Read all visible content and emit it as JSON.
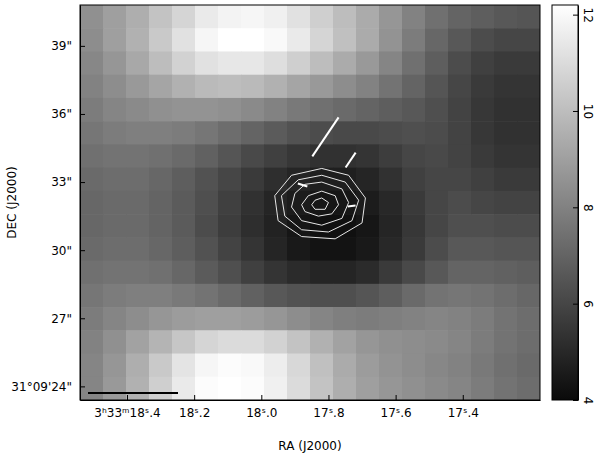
{
  "chart_data": {
    "type": "heatmap",
    "xlabel": "RA (J2000)",
    "ylabel": "DEC (J2000)",
    "xlim": [
      18.54,
      17.17
    ],
    "ylim": [
      40.8,
      23.4
    ],
    "xticks": [
      {
        "value": 18.4,
        "label": "3ʰ33ᵐ18ˢ.4"
      },
      {
        "value": 18.2,
        "label": "18ˢ.2"
      },
      {
        "value": 18.0,
        "label": "18ˢ.0"
      },
      {
        "value": 17.8,
        "label": "17ˢ.8"
      },
      {
        "value": 17.6,
        "label": "17ˢ.6"
      },
      {
        "value": 17.4,
        "label": "17ˢ.4"
      }
    ],
    "yticks": [
      {
        "value": 39,
        "label": "39\""
      },
      {
        "value": 36,
        "label": "36\""
      },
      {
        "value": 33,
        "label": "33\""
      },
      {
        "value": 30,
        "label": "30\""
      },
      {
        "value": 27,
        "label": "27\""
      },
      {
        "value": 24,
        "label": "31°09'24\""
      }
    ],
    "cells": [
      [
        8.5,
        9.0,
        9.5,
        10.2,
        10.8,
        11.5,
        11.8,
        11.9,
        11.7,
        11.2,
        10.6,
        10.0,
        9.4,
        8.7,
        8.0,
        7.4,
        7.0,
        6.8,
        6.6,
        6.5
      ],
      [
        8.4,
        9.0,
        9.6,
        10.4,
        11.2,
        11.9,
        12.2,
        12.2,
        12.0,
        11.5,
        10.8,
        10.1,
        9.4,
        8.6,
        7.8,
        7.1,
        6.6,
        6.2,
        6.0,
        6.0
      ],
      [
        8.2,
        8.7,
        9.3,
        10.0,
        10.7,
        11.2,
        11.4,
        11.4,
        11.1,
        10.6,
        10.0,
        9.4,
        8.8,
        8.1,
        7.4,
        6.8,
        6.2,
        5.8,
        5.6,
        5.6
      ],
      [
        8.0,
        8.4,
        8.8,
        9.2,
        9.6,
        9.9,
        10.0,
        9.9,
        9.6,
        9.2,
        8.8,
        8.4,
        8.0,
        7.5,
        7.0,
        6.5,
        6.0,
        5.6,
        5.4,
        5.4
      ],
      [
        7.8,
        8.1,
        8.3,
        8.5,
        8.6,
        8.6,
        8.5,
        8.3,
        8.0,
        7.7,
        7.4,
        7.2,
        7.0,
        6.8,
        6.6,
        6.3,
        5.9,
        5.5,
        5.3,
        5.3
      ],
      [
        7.6,
        7.8,
        7.9,
        7.9,
        7.8,
        7.6,
        7.3,
        7.0,
        6.7,
        6.4,
        6.2,
        6.1,
        6.1,
        6.2,
        6.3,
        6.2,
        5.9,
        5.5,
        5.3,
        5.3
      ],
      [
        7.4,
        7.5,
        7.5,
        7.4,
        7.2,
        6.9,
        6.5,
        6.1,
        5.8,
        5.5,
        5.3,
        5.3,
        5.4,
        5.7,
        6.0,
        6.1,
        5.9,
        5.6,
        5.4,
        5.4
      ],
      [
        7.2,
        7.3,
        7.3,
        7.1,
        6.8,
        6.4,
        6.0,
        5.6,
        5.2,
        4.9,
        4.7,
        4.7,
        4.9,
        5.3,
        5.8,
        6.0,
        6.0,
        5.8,
        5.6,
        5.6
      ],
      [
        7.1,
        7.2,
        7.2,
        7.0,
        6.7,
        6.3,
        5.8,
        5.3,
        4.9,
        4.6,
        4.4,
        4.4,
        4.6,
        5.0,
        5.6,
        6.0,
        6.2,
        6.0,
        5.9,
        5.9
      ],
      [
        7.1,
        7.2,
        7.2,
        7.0,
        6.7,
        6.2,
        5.7,
        5.2,
        4.8,
        4.4,
        4.2,
        4.2,
        4.4,
        4.9,
        5.5,
        6.0,
        6.3,
        6.3,
        6.2,
        6.2
      ],
      [
        7.2,
        7.3,
        7.3,
        7.1,
        6.8,
        6.4,
        5.9,
        5.4,
        4.9,
        4.5,
        4.3,
        4.3,
        4.5,
        5.0,
        5.6,
        6.2,
        6.6,
        6.6,
        6.5,
        6.5
      ],
      [
        7.4,
        7.5,
        7.5,
        7.4,
        7.1,
        6.7,
        6.3,
        5.8,
        5.4,
        5.1,
        4.9,
        4.9,
        5.1,
        5.6,
        6.1,
        6.6,
        7.0,
        7.0,
        6.9,
        6.8
      ],
      [
        7.6,
        7.8,
        7.9,
        7.9,
        7.7,
        7.5,
        7.2,
        6.9,
        6.6,
        6.4,
        6.3,
        6.3,
        6.5,
        6.8,
        7.2,
        7.5,
        7.6,
        7.5,
        7.3,
        7.1
      ],
      [
        7.8,
        8.1,
        8.4,
        8.7,
        8.9,
        9.0,
        9.0,
        8.9,
        8.7,
        8.4,
        8.1,
        7.9,
        7.8,
        7.9,
        8.0,
        8.1,
        8.0,
        7.8,
        7.5,
        7.3
      ],
      [
        8.0,
        8.5,
        9.1,
        9.7,
        10.3,
        10.8,
        11.0,
        11.0,
        10.7,
        10.2,
        9.6,
        9.1,
        8.7,
        8.5,
        8.4,
        8.3,
        8.1,
        7.8,
        7.5,
        7.3
      ],
      [
        8.1,
        8.7,
        9.5,
        10.4,
        11.3,
        11.9,
        12.1,
        12.0,
        11.6,
        10.9,
        10.1,
        9.4,
        8.9,
        8.6,
        8.4,
        8.2,
        8.0,
        7.7,
        7.4,
        7.2
      ],
      [
        8.1,
        8.8,
        9.6,
        10.6,
        11.5,
        12.1,
        12.2,
        12.1,
        11.7,
        11.0,
        10.2,
        9.5,
        9.0,
        8.7,
        8.5,
        8.3,
        8.1,
        7.8,
        7.5,
        7.3
      ]
    ],
    "colorbar": {
      "range": [
        4,
        12.2
      ],
      "ticks": [
        4,
        6,
        8,
        10,
        12
      ]
    },
    "contours": [
      [
        [
          17.82,
          33.6
        ],
        [
          17.74,
          33.3
        ],
        [
          17.69,
          32.3
        ],
        [
          17.7,
          31.2
        ],
        [
          17.78,
          30.5
        ],
        [
          17.88,
          30.6
        ],
        [
          17.95,
          31.3
        ],
        [
          17.96,
          32.4
        ],
        [
          17.91,
          33.3
        ]
      ],
      [
        [
          17.82,
          33.3
        ],
        [
          17.75,
          33.0
        ],
        [
          17.71,
          32.2
        ],
        [
          17.73,
          31.3
        ],
        [
          17.8,
          30.8
        ],
        [
          17.88,
          30.9
        ],
        [
          17.93,
          31.5
        ],
        [
          17.94,
          32.4
        ],
        [
          17.89,
          33.1
        ]
      ],
      [
        [
          17.82,
          33.0
        ],
        [
          17.76,
          32.7
        ],
        [
          17.74,
          32.1
        ],
        [
          17.76,
          31.4
        ],
        [
          17.82,
          31.1
        ],
        [
          17.88,
          31.3
        ],
        [
          17.91,
          31.9
        ],
        [
          17.9,
          32.5
        ],
        [
          17.87,
          32.9
        ]
      ],
      [
        [
          17.82,
          32.6
        ],
        [
          17.78,
          32.4
        ],
        [
          17.77,
          32.0
        ],
        [
          17.79,
          31.6
        ],
        [
          17.83,
          31.5
        ],
        [
          17.87,
          31.7
        ],
        [
          17.88,
          32.0
        ],
        [
          17.86,
          32.4
        ]
      ],
      [
        [
          17.82,
          32.3
        ],
        [
          17.8,
          32.1
        ],
        [
          17.81,
          31.8
        ],
        [
          17.84,
          31.8
        ],
        [
          17.85,
          32.0
        ],
        [
          17.84,
          32.2
        ]
      ]
    ],
    "vectors": {
      "x": [
        17.809,
        17.734,
        17.877,
        17.731
      ],
      "y": [
        34.99,
        33.97,
        32.87,
        31.95
      ],
      "length": [
        2.07,
        0.79,
        0.44,
        0.35
      ],
      "angle": [
        -34,
        -34,
        72,
        -83
      ]
    }
  }
}
